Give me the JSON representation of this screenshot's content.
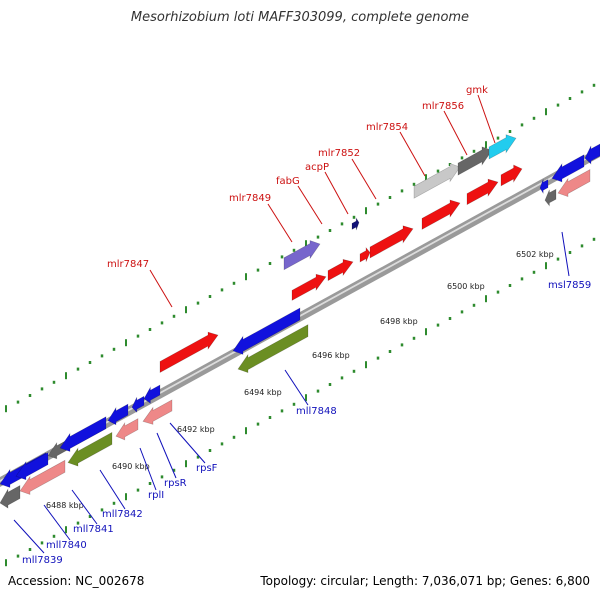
{
  "title": "Mesorhizobium loti MAFF303099, complete genome",
  "accession_text": "Accession: NC_002678",
  "summary_text": "Topology: circular; Length: 7,036,071 bp; Genes: 6,800",
  "colors": {
    "red": "#ee1111",
    "blue": "#1111dd",
    "pink": "#ee8888",
    "olive": "#6b8e23",
    "gray": "#666666",
    "lightgray": "#c8c8c8",
    "cyan": "#22ccee",
    "purple": "#7766cc",
    "navy": "#111177",
    "tick": "#2e8b2e",
    "backbone": "#999999",
    "forward_label": "#cc1111",
    "reverse_label": "#1111bb"
  },
  "kbp_ticks": [
    "6488 kbp",
    "6490 kbp",
    "6492 kbp",
    "6494 kbp",
    "6496 kbp",
    "6498 kbp",
    "6500 kbp",
    "6502 kbp"
  ],
  "forward_labels": [
    "mlr7847",
    "mlr7849",
    "fabG",
    "acpP",
    "mlr7852",
    "mlr7854",
    "mlr7856",
    "gmk"
  ],
  "reverse_labels": [
    "mll7839",
    "mll7840",
    "mll7841",
    "mll7842",
    "rplI",
    "rpsR",
    "rpsF",
    "mll7848",
    "msl7859"
  ]
}
